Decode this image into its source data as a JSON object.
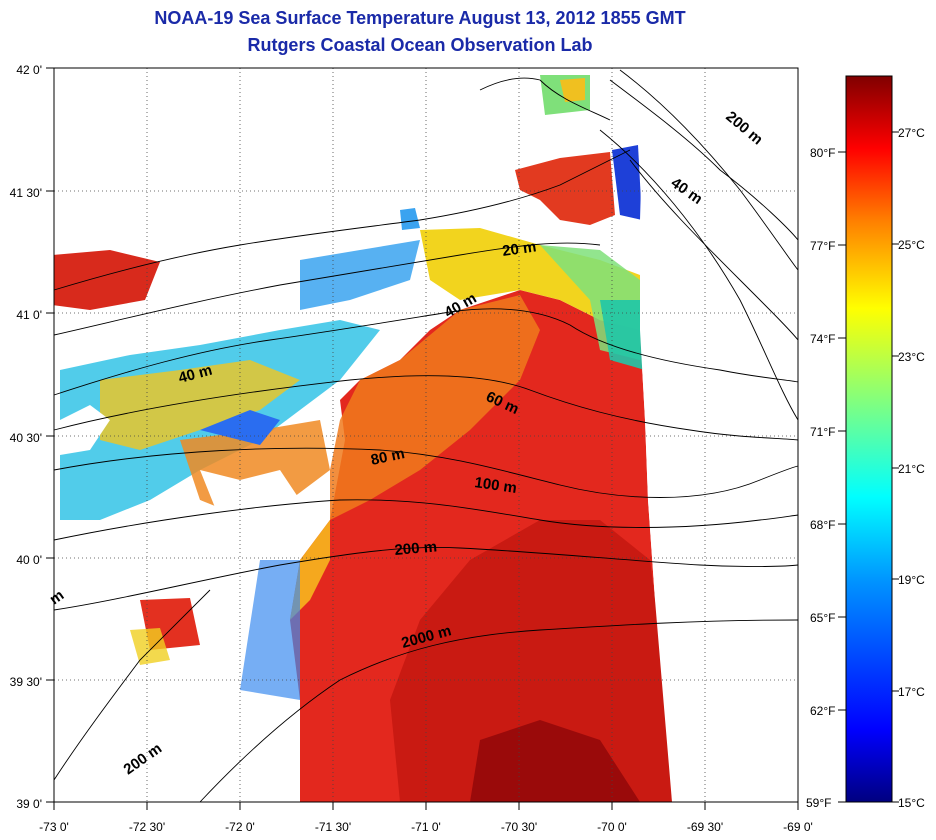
{
  "title": {
    "line1": "NOAA-19 Sea Surface Temperature August 13, 2012 1855 GMT",
    "line2": "Rutgers Coastal Ocean Observation Lab"
  },
  "axes": {
    "x_ticks": [
      "-73 0'",
      "-72 30'",
      "-72 0'",
      "-71 30'",
      "-71 0'",
      "-70 30'",
      "-70 0'",
      "-69 30'",
      "-69 0'"
    ],
    "y_ticks": [
      "42 0'",
      "41 30'",
      "41 0'",
      "40 30'",
      "40 0'",
      "39 30'",
      "39 0'"
    ],
    "lon_range": [
      -73,
      -69
    ],
    "lat_range": [
      39,
      42
    ]
  },
  "colorbar": {
    "fahrenheit": [
      "80°F",
      "77°F",
      "74°F",
      "71°F",
      "68°F",
      "65°F",
      "62°F",
      "59°F"
    ],
    "celsius": [
      "27°C",
      "25°C",
      "23°C",
      "21°C",
      "19°C",
      "17°C",
      "15°C"
    ],
    "range_c": [
      15,
      28.5
    ]
  },
  "bathymetry_labels": [
    "200 m",
    "40 m",
    "20 m",
    "40 m",
    "40 m",
    "60 m",
    "80 m",
    "100 m",
    "200 m",
    "2000 m",
    "200 m",
    "m"
  ],
  "colors": {
    "title": "#1a2aa8",
    "land_ocean_gap": "#ffffff",
    "warm": "#e3281e",
    "cool": "#2a6df0"
  }
}
